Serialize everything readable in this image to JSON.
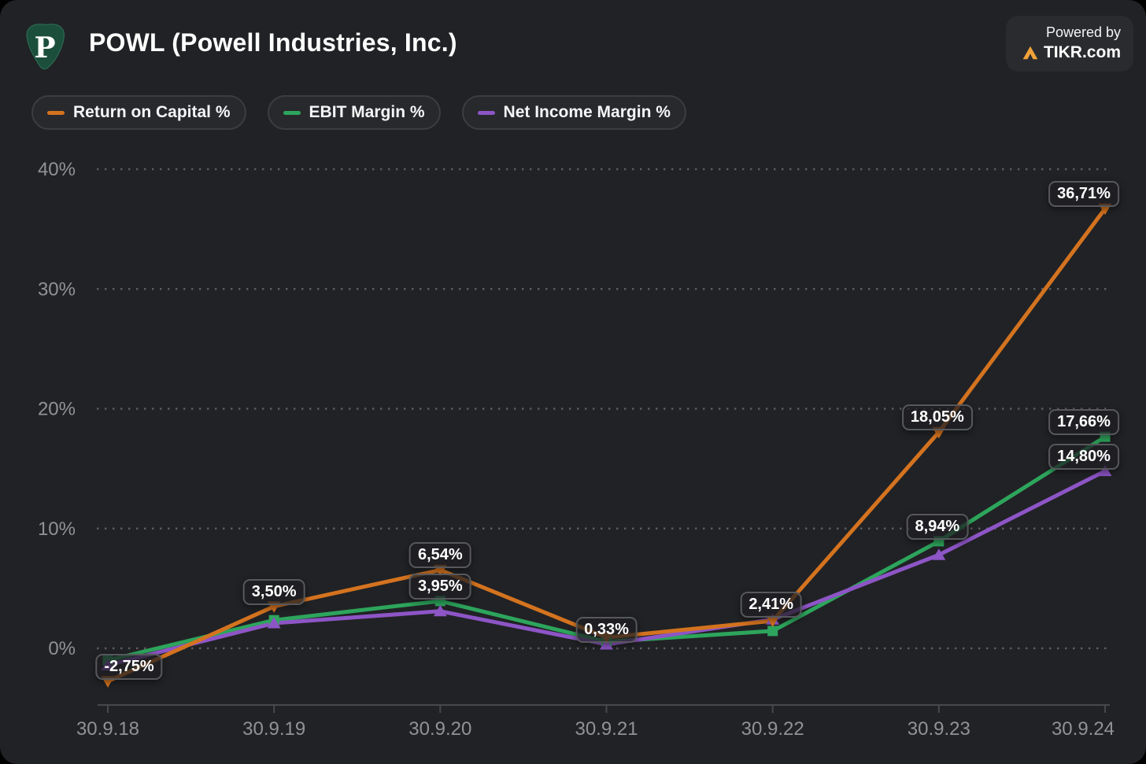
{
  "header": {
    "logo_letter": "P",
    "title": "POWL (Powell Industries, Inc.)",
    "powered_by": "Powered by",
    "brand": "TIKR.com"
  },
  "legend": {
    "items": [
      {
        "label": "Return on Capital %",
        "color": "#d4731f"
      },
      {
        "label": "EBIT Margin %",
        "color": "#2da55c"
      },
      {
        "label": "Net Income Margin %",
        "color": "#8d55c6"
      }
    ]
  },
  "colors": {
    "card_background": "#212225",
    "grid_dots": "#5c5d60",
    "axis_line": "#47484c",
    "axis_text": "#909296",
    "label_pill_border": "#56585c",
    "logo_green": "#1b4e3b",
    "tikr_orange": "#f0a23a"
  },
  "chart_data": {
    "type": "line",
    "title": "POWL (Powell Industries, Inc.)",
    "categories": [
      "30.9.18",
      "30.9.19",
      "30.9.20",
      "30.9.21",
      "30.9.22",
      "30.9.23",
      "30.9.24"
    ],
    "y_ticks": [
      {
        "label": "40%",
        "value": 40
      },
      {
        "label": "30%",
        "value": 30
      },
      {
        "label": "20%",
        "value": 20
      },
      {
        "label": "10%",
        "value": 10
      },
      {
        "label": "0%",
        "value": 0
      }
    ],
    "ylim": [
      -5.5,
      42
    ],
    "grid": "horizontal-dotted",
    "legend_position": "top-left",
    "series": [
      {
        "id": "roc",
        "name": "Return on Capital %",
        "color": "#d4731f",
        "marker": "triangle-down",
        "z": 3,
        "values": [
          -2.75,
          3.5,
          6.54,
          0.9,
          2.3,
          18.05,
          36.71
        ]
      },
      {
        "id": "ebit",
        "name": "EBIT Margin %",
        "color": "#2da55c",
        "marker": "square",
        "z": 1,
        "values": [
          -1.0,
          2.35,
          3.95,
          0.55,
          1.45,
          8.94,
          17.66
        ]
      },
      {
        "id": "nim",
        "name": "Net Income Margin %",
        "color": "#8d55c6",
        "marker": "triangle-up",
        "z": 2,
        "values": [
          -1.4,
          2.1,
          3.1,
          0.33,
          2.41,
          7.8,
          14.8
        ]
      }
    ],
    "labels": [
      {
        "text": "-2,75%",
        "series": 0,
        "index": 0,
        "dx": 27
      },
      {
        "text": "3,50%",
        "series": 0,
        "index": 1,
        "dx": 0
      },
      {
        "text": "6,54%",
        "series": 0,
        "index": 2,
        "dx": 0
      },
      {
        "text": "3,95%",
        "series": 1,
        "index": 2,
        "dx": 0
      },
      {
        "text": "0,33%",
        "series": 2,
        "index": 3,
        "dx": 0
      },
      {
        "text": "2,41%",
        "series": 2,
        "index": 4,
        "dx": -2
      },
      {
        "text": "18,05%",
        "series": 0,
        "index": 5,
        "dx": -2
      },
      {
        "text": "8,94%",
        "series": 1,
        "index": 5,
        "dx": -2
      },
      {
        "text": "36,71%",
        "series": 0,
        "index": 6,
        "dx": -27
      },
      {
        "text": "17,66%",
        "series": 1,
        "index": 6,
        "dx": -27
      },
      {
        "text": "14,80%",
        "series": 2,
        "index": 6,
        "dx": -27
      }
    ]
  }
}
